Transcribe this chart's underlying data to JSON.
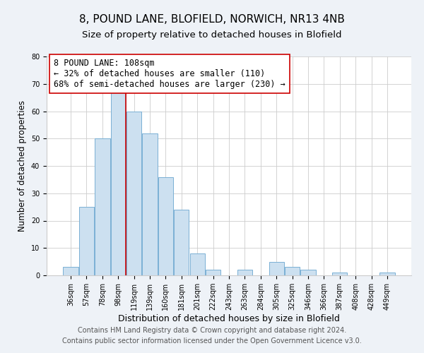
{
  "title": "8, POUND LANE, BLOFIELD, NORWICH, NR13 4NB",
  "subtitle": "Size of property relative to detached houses in Blofield",
  "xlabel": "Distribution of detached houses by size in Blofield",
  "ylabel": "Number of detached properties",
  "bar_labels": [
    "36sqm",
    "57sqm",
    "78sqm",
    "98sqm",
    "119sqm",
    "139sqm",
    "160sqm",
    "181sqm",
    "201sqm",
    "222sqm",
    "243sqm",
    "263sqm",
    "284sqm",
    "305sqm",
    "325sqm",
    "346sqm",
    "366sqm",
    "387sqm",
    "408sqm",
    "428sqm",
    "449sqm"
  ],
  "bar_values": [
    3,
    25,
    50,
    67,
    60,
    52,
    36,
    24,
    8,
    2,
    0,
    2,
    0,
    5,
    3,
    2,
    0,
    1,
    0,
    0,
    1
  ],
  "bar_color": "#cce0f0",
  "bar_edge_color": "#7ab0d4",
  "vline_x": 3.5,
  "vline_color": "#cc0000",
  "annotation_line1": "8 POUND LANE: 108sqm",
  "annotation_line2": "← 32% of detached houses are smaller (110)",
  "annotation_line3": "68% of semi-detached houses are larger (230) →",
  "annotation_box_edge": "#cc0000",
  "annotation_box_face": "#ffffff",
  "ylim": [
    0,
    80
  ],
  "yticks": [
    0,
    10,
    20,
    30,
    40,
    50,
    60,
    70,
    80
  ],
  "footnote1": "Contains HM Land Registry data © Crown copyright and database right 2024.",
  "footnote2": "Contains public sector information licensed under the Open Government Licence v3.0.",
  "background_color": "#eef2f7",
  "plot_background_color": "#ffffff",
  "title_fontsize": 11,
  "subtitle_fontsize": 9.5,
  "xlabel_fontsize": 9,
  "ylabel_fontsize": 8.5,
  "annotation_fontsize": 8.5,
  "tick_fontsize": 7,
  "footnote_fontsize": 7
}
